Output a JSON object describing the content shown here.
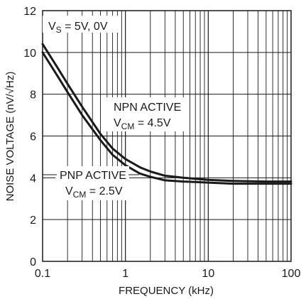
{
  "chart_data": {
    "type": "line",
    "x_scale": "log",
    "xlim": [
      0.1,
      100
    ],
    "ylim": [
      0,
      12
    ],
    "xlabel": "FREQUENCY (kHz)",
    "ylabel": "NOISE VOLTAGE (nV/√Hz)",
    "x_ticks": [
      {
        "value": 0.1,
        "label": "0.1"
      },
      {
        "value": 1,
        "label": "1"
      },
      {
        "value": 10,
        "label": "10"
      },
      {
        "value": 100,
        "label": "100"
      }
    ],
    "y_ticks": [
      {
        "value": 0,
        "label": "0"
      },
      {
        "value": 2,
        "label": "2"
      },
      {
        "value": 4,
        "label": "4"
      },
      {
        "value": 6,
        "label": "6"
      },
      {
        "value": 8,
        "label": "8"
      },
      {
        "value": 10,
        "label": "10"
      },
      {
        "value": 12,
        "label": "12"
      }
    ],
    "grid": true,
    "condition": {
      "main": "V",
      "sub": "S",
      "rest": " = 5V, 0V"
    },
    "series": [
      {
        "id": "npn",
        "label": "NPN ACTIVE",
        "sublabel": {
          "main": "V",
          "sub": "CM",
          "rest": " = 4.5V"
        },
        "x": [
          0.1,
          0.15,
          0.2,
          0.3,
          0.5,
          0.7,
          1,
          1.5,
          2,
          3,
          5,
          7,
          10,
          20,
          50,
          100
        ],
        "y": [
          10.4,
          9.3,
          8.5,
          7.4,
          6.1,
          5.4,
          4.9,
          4.5,
          4.3,
          4.1,
          4.0,
          3.95,
          3.9,
          3.85,
          3.82,
          3.82
        ]
      },
      {
        "id": "pnp",
        "label": "PNP ACTIVE",
        "sublabel": {
          "main": "V",
          "sub": "CM",
          "rest": " = 2.5V"
        },
        "x": [
          0.1,
          0.15,
          0.2,
          0.3,
          0.5,
          0.7,
          1,
          1.5,
          2,
          3,
          5,
          7,
          10,
          20,
          50,
          100
        ],
        "y": [
          10.0,
          8.9,
          8.1,
          7.0,
          5.8,
          5.1,
          4.6,
          4.2,
          4.05,
          3.88,
          3.82,
          3.8,
          3.77,
          3.72,
          3.72,
          3.72
        ]
      }
    ]
  }
}
